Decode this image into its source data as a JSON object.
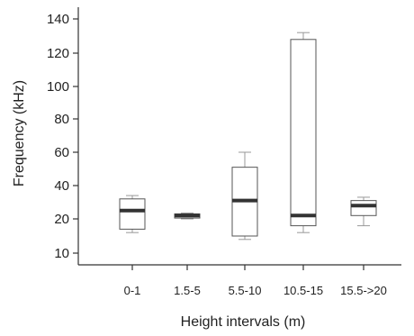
{
  "chart_data": {
    "type": "boxplot",
    "xlabel": "Height intervals (m)",
    "ylabel": "Frequency (kHz)",
    "yticks": [
      10,
      20,
      40,
      60,
      80,
      100,
      120,
      140
    ],
    "yticklabels": [
      "10",
      "20",
      "40",
      "60",
      "80",
      "100",
      "120",
      "140"
    ],
    "categories": [
      "0-1",
      "1.5-5",
      "5.5-10",
      "10.5-15",
      "15.5->20"
    ],
    "boxes": [
      {
        "category": "0-1",
        "min": 16,
        "q1": 17,
        "median": 25,
        "q3": 32,
        "max": 34
      },
      {
        "category": "1.5-5",
        "min": 20,
        "q1": 20.5,
        "median": 22,
        "q3": 23,
        "max": 23.5
      },
      {
        "category": "5.5-10",
        "min": 14,
        "q1": 15,
        "median": 31,
        "q3": 51,
        "max": 60
      },
      {
        "category": "10.5-15",
        "min": 16,
        "q1": 18,
        "median": 22,
        "q3": 128,
        "max": 132
      },
      {
        "category": "15.5->20",
        "min": 18,
        "q1": 22,
        "median": 28,
        "q3": 31,
        "max": 33
      }
    ]
  }
}
